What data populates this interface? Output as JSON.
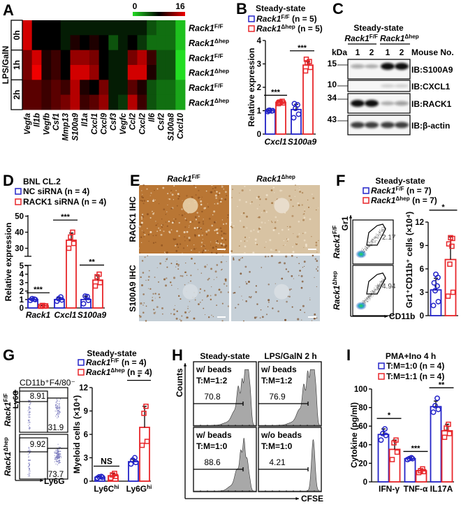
{
  "letters": [
    "A",
    "B",
    "C",
    "D",
    "E",
    "F",
    "G",
    "H",
    "I"
  ],
  "chart_data": [
    {
      "id": "A",
      "type": "heatmap",
      "colorbar": {
        "range": [
          0,
          16
        ],
        "min_label": "0",
        "max_label": "16",
        "colors": [
          "#22dd22",
          "#000000",
          "#f00000"
        ]
      },
      "row_group_label": "LPS/GalN",
      "row_groups": [
        "0h",
        "1h",
        "2h"
      ],
      "rows": [
        {
          "base": "Rack1",
          "sup": "F/F"
        },
        {
          "base": "Rack1",
          "sup": "Δhep"
        },
        {
          "base": "Rack1",
          "sup": "F/F"
        },
        {
          "base": "Rack1",
          "sup": "Δhep"
        },
        {
          "base": "Rack1",
          "sup": "F/F"
        },
        {
          "base": "Rack1",
          "sup": "Δhep"
        }
      ],
      "columns": [
        "Vegfa",
        "Il1b",
        "Vegfb",
        "Csf1",
        "Mmp13",
        "S100a9",
        "Il1a",
        "Cxcl1",
        "Cxcl9",
        "Csf3",
        "Vegfc",
        "Ccl2",
        "Cxcl2",
        "Il6",
        "Csf2",
        "S100a8",
        "Cxcl10"
      ],
      "values": [
        [
          15,
          8,
          8,
          8,
          7,
          7,
          7,
          7,
          7,
          7,
          7,
          7,
          7,
          5,
          4,
          4,
          1
        ],
        [
          15,
          8,
          8,
          8,
          7,
          9,
          8,
          9,
          8,
          5,
          7,
          8,
          6,
          4,
          4,
          4,
          1
        ],
        [
          12,
          15,
          9,
          10,
          8,
          13,
          13,
          12,
          8,
          7,
          7,
          12,
          14,
          10,
          5,
          5,
          0
        ],
        [
          12,
          16,
          9,
          10,
          8,
          15,
          15,
          13,
          8,
          7,
          7,
          15,
          15,
          9,
          5,
          5,
          0
        ],
        [
          11,
          11,
          10,
          11,
          10,
          14,
          9,
          8,
          12,
          7,
          7,
          11,
          9,
          5,
          4,
          4,
          2
        ],
        [
          11,
          11,
          10,
          11,
          12,
          14,
          10,
          11,
          13,
          7,
          6,
          14,
          10,
          5,
          4,
          4,
          2
        ]
      ]
    },
    {
      "id": "B",
      "type": "bar",
      "title": "Steady-state",
      "ylabel": "Relative expression",
      "ylim": [
        0,
        4
      ],
      "yticks": [
        "0",
        "1",
        "2",
        "3",
        "4"
      ],
      "categories": [
        "Cxcl1",
        "S100a9"
      ],
      "category_sup": [
        "",
        ""
      ],
      "significance": [
        "***",
        "***"
      ],
      "series": [
        {
          "name_base": "Rack1",
          "name_sup": "F/F",
          "name_suffix": " (n = 5)",
          "color": "#2424c8",
          "marker": "circle",
          "values": [
            1.0,
            1.05
          ],
          "sd": [
            0.03,
            0.22
          ],
          "points": [
            [
              0.96,
              1.0,
              1.02,
              0.99,
              1.01
            ],
            [
              0.7,
              0.85,
              1.1,
              1.25,
              1.3
            ]
          ]
        },
        {
          "name_base": "Rack1",
          "name_sup": "Δhep",
          "name_suffix": " (n = 5)",
          "color": "#e8262a",
          "marker": "square",
          "values": [
            1.35,
            2.95
          ],
          "sd": [
            0.05,
            0.15
          ],
          "points": [
            [
              1.3,
              1.33,
              1.37,
              1.4,
              1.35
            ],
            [
              2.7,
              2.85,
              3.05,
              3.1,
              3.2
            ]
          ]
        }
      ]
    },
    {
      "id": "D",
      "type": "bar",
      "title": "BNL CL.2",
      "ylabel": "Relative expression",
      "ylim": [
        0,
        50
      ],
      "axis_break": [
        5,
        25
      ],
      "yticks": [
        "0",
        "1",
        "2",
        "3",
        "4",
        "5",
        "30",
        "40",
        "50"
      ],
      "categories": [
        "Rack1",
        "Cxcl1",
        "S100a9"
      ],
      "category_sup": [
        "",
        "",
        ""
      ],
      "significance": [
        "***",
        "***",
        "**"
      ],
      "series": [
        {
          "name_base": "NC siRNA (n = 4)",
          "name_sup": "",
          "name_suffix": "",
          "color": "#2424c8",
          "marker": "circle",
          "values": [
            1.0,
            1.0,
            1.0
          ],
          "sd": [
            0.12,
            0.2,
            0.4
          ],
          "points": [
            [
              0.9,
              1.0,
              1.1,
              1.05
            ],
            [
              0.8,
              0.95,
              1.1,
              1.3
            ],
            [
              0.5,
              0.9,
              1.4,
              1.35
            ]
          ]
        },
        {
          "name_base": "RACK1 siRNA (n = 4)",
          "name_sup": "",
          "name_suffix": "",
          "color": "#e8262a",
          "marker": "square",
          "values": [
            0.25,
            35,
            3.3
          ],
          "sd": [
            0.05,
            4.5,
            0.5
          ],
          "points": [
            [
              0.2,
              0.25,
              0.3,
              0.22
            ],
            [
              30,
              33,
              37,
              40
            ],
            [
              2.6,
              3.0,
              3.7,
              4.0
            ]
          ]
        }
      ]
    },
    {
      "id": "F",
      "type": "bar",
      "title": "Steady-state",
      "ylabel": "Gr1⁺CD11b⁺ cells (×10⁴)",
      "ylim": [
        0,
        12
      ],
      "yticks": [
        "0",
        "3",
        "6",
        "9",
        "12"
      ],
      "categories": [
        ""
      ],
      "category_sup": [
        ""
      ],
      "significance": [
        "*"
      ],
      "series": [
        {
          "name_base": "Rack1",
          "name_sup": "F/F",
          "name_suffix": " (n = 7)",
          "color": "#2424c8",
          "marker": "circle",
          "values": [
            3.3
          ],
          "sd": [
            1.5
          ],
          "points": [
            [
              1.3,
              1.8,
              3.2,
              3.8,
              4.2,
              4.9,
              5.3
            ]
          ]
        },
        {
          "name_base": "Rack1",
          "name_sup": "Δhep",
          "name_suffix": " (n = 7)",
          "color": "#e8262a",
          "marker": "square",
          "values": [
            7.2
          ],
          "sd": [
            2.9
          ],
          "points": [
            [
              2.5,
              3.0,
              6.6,
              8.9,
              9.2,
              9.9,
              10.0
            ]
          ]
        }
      ]
    },
    {
      "id": "G",
      "type": "bar",
      "title": "Steady-state",
      "ylabel": "Myeloid cells (×10⁴)",
      "ylim": [
        0,
        12
      ],
      "yticks": [
        "0",
        "3",
        "6",
        "9",
        "12"
      ],
      "categories": [
        "Ly6C",
        "Ly6G"
      ],
      "category_sup": [
        "hi",
        "hi"
      ],
      "significance": [
        "NS",
        "*"
      ],
      "series": [
        {
          "name_base": "Rack1",
          "name_sup": "F/F",
          "name_suffix": " (n = 4)",
          "color": "#2424c8",
          "marker": "circle",
          "values": [
            0.5,
            2.5
          ],
          "sd": [
            0.1,
            0.3
          ],
          "points": [
            [
              0.4,
              0.5,
              0.55,
              0.6
            ],
            [
              2.2,
              2.4,
              2.7,
              3.0
            ]
          ]
        },
        {
          "name_base": "Rack1",
          "name_sup": "Δhep",
          "name_suffix": " (n = 4)",
          "color": "#e8262a",
          "marker": "square",
          "values": [
            0.7,
            6.9
          ],
          "sd": [
            0.3,
            2.7
          ],
          "points": [
            [
              0.4,
              0.6,
              0.8,
              1.0
            ],
            [
              4.6,
              5.1,
              8.7,
              9.6
            ]
          ]
        }
      ]
    },
    {
      "id": "I",
      "type": "bar",
      "title": "PMA+Ino 4 h",
      "ylabel": "Cytokine (pg/ml)",
      "ylim": [
        0,
        100
      ],
      "yticks": [
        "0",
        "20",
        "40",
        "60",
        "80",
        "100"
      ],
      "categories": [
        "IFN-γ",
        "TNF-α",
        "IL17A"
      ],
      "category_sup": [
        "",
        "",
        ""
      ],
      "significance": [
        "*",
        "***",
        "**"
      ],
      "series": [
        {
          "name_base": "T:M=1:0 (n = 4)",
          "name_sup": "",
          "name_suffix": "",
          "color": "#2424c8",
          "marker": "circle",
          "values": [
            51,
            25,
            81
          ],
          "sd": [
            6,
            1.5,
            6
          ],
          "points": [
            [
              45,
              50,
              52,
              57
            ],
            [
              24,
              25,
              25,
              26
            ],
            [
              75,
              78,
              82,
              90
            ]
          ]
        },
        {
          "name_base": "T:M=1:1 (n = 4)",
          "name_sup": "",
          "name_suffix": "",
          "color": "#e8262a",
          "marker": "square",
          "values": [
            35,
            12,
            55
          ],
          "sd": [
            10,
            2,
            7
          ],
          "points": [
            [
              24,
              32,
              42,
              45
            ],
            [
              10,
              11,
              12,
              14
            ],
            [
              48,
              52,
              58,
              62
            ]
          ]
        }
      ]
    }
  ],
  "blot": {
    "title": "Steady-state",
    "groups": [
      {
        "base": "Rack1",
        "sup": "F/F"
      },
      {
        "base": "Rack1",
        "sup": "Δhep"
      }
    ],
    "kda_label": "kDa",
    "lanes": [
      "1",
      "2",
      "1",
      "2"
    ],
    "lane_header": "Mouse No.",
    "rows": [
      {
        "kda": "15",
        "label": "IB:S100A9",
        "intensity": [
          0.35,
          0.3,
          1.0,
          1.0
        ]
      },
      {
        "kda": "10",
        "label": "IB:CXCL1",
        "intensity": [
          0.0,
          0.0,
          0.15,
          0.15
        ]
      },
      {
        "kda": "34",
        "label": "IB:RACK1",
        "intensity": [
          1.0,
          1.0,
          0.3,
          0.4
        ]
      },
      {
        "kda": "43",
        "label": "IB:β-actin",
        "intensity": [
          0.8,
          0.8,
          0.8,
          0.8
        ]
      }
    ]
  },
  "ihc": {
    "columns": [
      {
        "base": "Rack1",
        "sup": "F/F"
      },
      {
        "base": "Rack1",
        "sup": "Δhep"
      }
    ],
    "rows": [
      "RACK1 IHC",
      "S100A9 IHC"
    ]
  },
  "flow_f": {
    "y_axis": "Gr1",
    "x_axis": "CD11b",
    "rows": [
      {
        "base": "Rack1",
        "sup": "F/F"
      },
      {
        "base": "Rack1",
        "sup": "Δhep"
      }
    ],
    "gate_values": [
      "2.17",
      "4.94"
    ]
  },
  "flow_g": {
    "gate_title": "CD11b⁺F4/80⁻",
    "y_axis": "Ly6C",
    "x_axis": "Ly6G",
    "rows": [
      {
        "base": "Rack1",
        "sup": "F/F"
      },
      {
        "base": "Rack1",
        "sup": "Δhep"
      }
    ],
    "plots": [
      {
        "ly6c_gate": "8.91",
        "ly6g_gate": "31.9"
      },
      {
        "ly6c_gate": "9.92",
        "ly6g_gate": "73.7"
      }
    ]
  },
  "hist_h": {
    "columns": [
      "Steady-state",
      "LPS/GalN 2 h"
    ],
    "y_axis": "Counts",
    "x_axis": "CFSE",
    "panels": [
      {
        "line1": "w/ beads",
        "line2": "T:M=1:2",
        "value": "70.8"
      },
      {
        "line1": "w/ beads",
        "line2": "T:M=1:2",
        "value": "76.9"
      },
      {
        "line1": "w/ beads",
        "line2": "T:M=1:0",
        "value": "88.6"
      },
      {
        "line1": "w/o beads",
        "line2": "T:M=1:0",
        "value": "4.21"
      }
    ]
  }
}
